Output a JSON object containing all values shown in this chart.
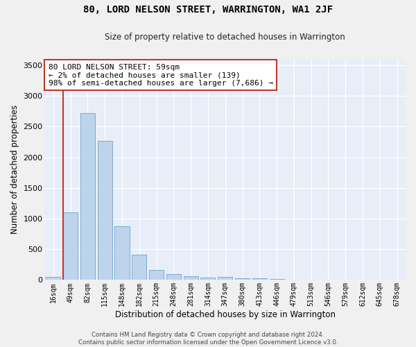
{
  "title": "80, LORD NELSON STREET, WARRINGTON, WA1 2JF",
  "subtitle": "Size of property relative to detached houses in Warrington",
  "xlabel": "Distribution of detached houses by size in Warrington",
  "ylabel": "Number of detached properties",
  "categories": [
    "16sqm",
    "49sqm",
    "82sqm",
    "115sqm",
    "148sqm",
    "182sqm",
    "215sqm",
    "248sqm",
    "281sqm",
    "314sqm",
    "347sqm",
    "380sqm",
    "413sqm",
    "446sqm",
    "479sqm",
    "513sqm",
    "546sqm",
    "579sqm",
    "612sqm",
    "645sqm",
    "678sqm"
  ],
  "values": [
    50,
    1100,
    2720,
    2270,
    880,
    410,
    160,
    100,
    60,
    40,
    50,
    30,
    25,
    20,
    5,
    3,
    2,
    2,
    1,
    1,
    1
  ],
  "bar_color": "#bed4ec",
  "bar_edge_color": "#7aadd4",
  "vline_color": "#c0392b",
  "vline_x_index": 1,
  "annotation_text": "80 LORD NELSON STREET: 59sqm\n← 2% of detached houses are smaller (139)\n98% of semi-detached houses are larger (7,686) →",
  "annotation_box_facecolor": "#ffffff",
  "annotation_box_edgecolor": "#c0392b",
  "ylim": [
    0,
    3600
  ],
  "yticks": [
    0,
    500,
    1000,
    1500,
    2000,
    2500,
    3000,
    3500
  ],
  "fig_background": "#f0f0f0",
  "ax_background": "#e8eef8",
  "grid_color": "#ffffff",
  "title_fontsize": 10,
  "subtitle_fontsize": 8.5,
  "footer": "Contains HM Land Registry data © Crown copyright and database right 2024.\nContains public sector information licensed under the Open Government Licence v3.0."
}
